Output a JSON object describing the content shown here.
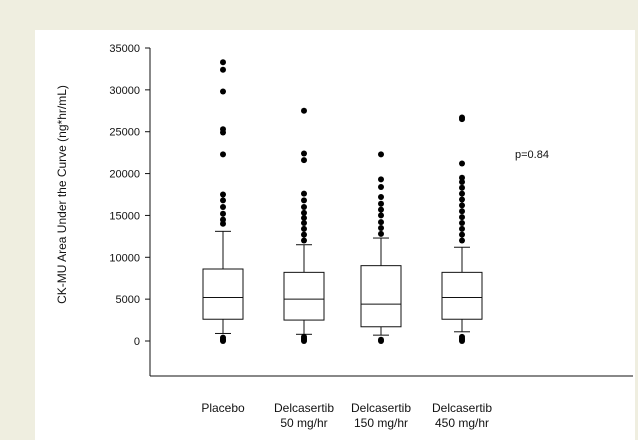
{
  "chart_data": {
    "type": "box",
    "title": "",
    "xlabel": "",
    "ylabel": "CK-MU Area Under the Curve (ng*hr/mL)",
    "ylim": [
      0,
      35000
    ],
    "yticks": [
      0,
      5000,
      10000,
      15000,
      20000,
      25000,
      30000,
      35000
    ],
    "categories": [
      [
        "Placebo"
      ],
      [
        "Delcasertib",
        "50 mg/hr"
      ],
      [
        "Delcasertib",
        "150 mg/hr"
      ],
      [
        "Delcasertib",
        "450 mg/hr"
      ]
    ],
    "boxes": [
      {
        "whisker_low": 900,
        "q1": 2600,
        "median": 5200,
        "q3": 8600,
        "whisker_high": 13100,
        "outliers": [
          0,
          100,
          200,
          400,
          14000,
          14500,
          15200,
          16000,
          16800,
          17500,
          22300,
          24900,
          25300,
          29800,
          32400,
          33300
        ]
      },
      {
        "whisker_low": 800,
        "q1": 2500,
        "median": 5000,
        "q3": 8200,
        "whisker_high": 11500,
        "outliers": [
          0,
          150,
          300,
          500,
          12000,
          12700,
          13400,
          14100,
          14700,
          15300,
          16000,
          16800,
          17600,
          21600,
          22400,
          27500
        ]
      },
      {
        "whisker_low": 700,
        "q1": 1700,
        "median": 4400,
        "q3": 9000,
        "whisker_high": 12300,
        "outliers": [
          0,
          150,
          12800,
          13500,
          14200,
          15000,
          15700,
          16400,
          17200,
          18400,
          19300,
          22300
        ]
      },
      {
        "whisker_low": 1100,
        "q1": 2600,
        "median": 5200,
        "q3": 8200,
        "whisker_high": 11200,
        "outliers": [
          0,
          150,
          300,
          500,
          12000,
          12700,
          13400,
          14100,
          14800,
          15500,
          16200,
          16900,
          17600,
          18300,
          19000,
          19500,
          21200,
          26500,
          26700
        ]
      }
    ],
    "annotation": "p=0.84",
    "grid": false,
    "legend": "none"
  }
}
